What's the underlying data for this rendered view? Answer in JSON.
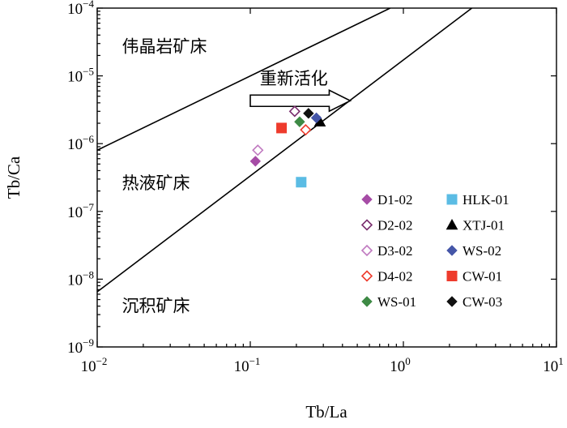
{
  "chart_data": {
    "type": "scatter",
    "x_scale": "log",
    "y_scale": "log",
    "xlim": [
      0.01,
      10
    ],
    "ylim": [
      1e-09,
      0.0001
    ],
    "xlabel": "Tb/La",
    "ylabel": "Tb/Ca",
    "x_ticks": [
      {
        "value": 0.01,
        "base": "10",
        "exp": "−2"
      },
      {
        "value": 0.1,
        "base": "10",
        "exp": "−1"
      },
      {
        "value": 1,
        "base": "10",
        "exp": "0"
      },
      {
        "value": 10,
        "base": "10",
        "exp": "1"
      }
    ],
    "y_ticks": [
      {
        "value": 0.0001,
        "base": "10",
        "exp": "−4"
      },
      {
        "value": 1e-05,
        "base": "10",
        "exp": "−5"
      },
      {
        "value": 1e-06,
        "base": "10",
        "exp": "−6"
      },
      {
        "value": 1e-07,
        "base": "10",
        "exp": "−7"
      },
      {
        "value": 1e-08,
        "base": "10",
        "exp": "−8"
      },
      {
        "value": 1e-09,
        "base": "10",
        "exp": "−9"
      }
    ],
    "reference_lines": [
      {
        "name": "upper-boundary",
        "points": [
          [
            0.01,
            8e-07
          ],
          [
            0.82,
            0.0001
          ]
        ]
      },
      {
        "name": "lower-boundary",
        "points": [
          [
            0.01,
            6.5e-09
          ],
          [
            2.8,
            0.0001
          ]
        ]
      }
    ],
    "region_labels": [
      {
        "text": "伟晶岩矿床",
        "x": 0.0145,
        "y": 2.7e-05
      },
      {
        "text": "热液矿床",
        "x": 0.0145,
        "y": 2.6e-07
      },
      {
        "text": "沉积矿床",
        "x": 0.0145,
        "y": 4e-09
      }
    ],
    "annotation": {
      "text": "重新活化",
      "arrow_from": [
        0.1,
        4.3e-06
      ],
      "arrow_to": [
        0.45,
        4.3e-06
      ]
    },
    "series": [
      {
        "name": "D1-02",
        "marker": "diamond",
        "filled": true,
        "color": "#a64ca6",
        "points": [
          [
            0.108,
            5.5e-07
          ]
        ]
      },
      {
        "name": "D2-02",
        "marker": "diamond",
        "filled": false,
        "color": "#7a2e6e",
        "points": [
          [
            0.195,
            3e-06
          ]
        ]
      },
      {
        "name": "D3-02",
        "marker": "diamond",
        "filled": false,
        "color": "#c07ac0",
        "points": [
          [
            0.112,
            8e-07
          ]
        ]
      },
      {
        "name": "D4-02",
        "marker": "diamond",
        "filled": false,
        "color": "#ee3b2c",
        "points": [
          [
            0.23,
            1.6e-06
          ]
        ]
      },
      {
        "name": "WS-01",
        "marker": "diamond",
        "filled": true,
        "color": "#3e8a45",
        "points": [
          [
            0.21,
            2.1e-06
          ]
        ]
      },
      {
        "name": "HLK-01",
        "marker": "square",
        "filled": true,
        "color": "#5bbce4",
        "points": [
          [
            0.215,
            2.7e-07
          ]
        ]
      },
      {
        "name": "XTJ-01",
        "marker": "triangle",
        "filled": true,
        "color": "#000000",
        "points": [
          [
            0.285,
            2.1e-06
          ]
        ]
      },
      {
        "name": "WS-02",
        "marker": "diamond",
        "filled": true,
        "color": "#4556a8",
        "points": [
          [
            0.27,
            2.4e-06
          ]
        ]
      },
      {
        "name": "CW-01",
        "marker": "square",
        "filled": true,
        "color": "#ee3b2c",
        "points": [
          [
            0.16,
            1.7e-06
          ]
        ]
      },
      {
        "name": "CW-03",
        "marker": "diamond",
        "filled": true,
        "color": "#111111",
        "points": [
          [
            0.24,
            2.8e-06
          ]
        ]
      }
    ],
    "legend_position": "lower-right",
    "legend_order": [
      "D1-02",
      "HLK-01",
      "D2-02",
      "XTJ-01",
      "D3-02",
      "WS-02",
      "D4-02",
      "CW-01",
      "WS-01",
      "CW-03"
    ]
  }
}
